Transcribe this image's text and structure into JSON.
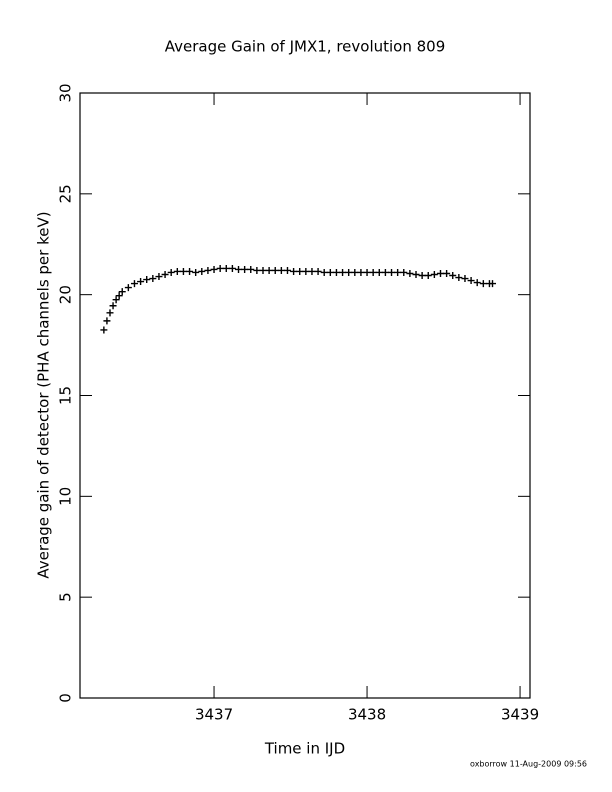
{
  "chart_data": {
    "type": "scatter",
    "title": "Average Gain of JMX1, revolution 809",
    "x_label": "Time in IJD",
    "y_label": "Average gain of detector (PHA channels per keV)",
    "footnote": "oxborrow 11-Aug-2009 09:56",
    "marker": "+",
    "color": "#000000",
    "x": [
      3436.28,
      3436.3,
      3436.32,
      3436.34,
      3436.36,
      3436.38,
      3436.4,
      3436.44,
      3436.48,
      3436.52,
      3436.56,
      3436.6,
      3436.64,
      3436.68,
      3436.72,
      3436.76,
      3436.8,
      3436.84,
      3436.88,
      3436.92,
      3436.96,
      3437.0,
      3437.04,
      3437.08,
      3437.12,
      3437.16,
      3437.2,
      3437.24,
      3437.28,
      3437.32,
      3437.36,
      3437.4,
      3437.44,
      3437.48,
      3437.52,
      3437.56,
      3437.6,
      3437.64,
      3437.68,
      3437.72,
      3437.76,
      3437.8,
      3437.84,
      3437.88,
      3437.92,
      3437.96,
      3438.0,
      3438.04,
      3438.08,
      3438.12,
      3438.16,
      3438.2,
      3438.24,
      3438.28,
      3438.32,
      3438.36,
      3438.4,
      3438.44,
      3438.48,
      3438.52,
      3438.56,
      3438.6,
      3438.64,
      3438.68,
      3438.72,
      3438.76,
      3438.8,
      3438.82
    ],
    "values": [
      18.25,
      18.7,
      19.1,
      19.45,
      19.75,
      19.95,
      20.15,
      20.35,
      20.55,
      20.65,
      20.75,
      20.8,
      20.9,
      21.0,
      21.1,
      21.15,
      21.15,
      21.15,
      21.1,
      21.15,
      21.2,
      21.25,
      21.3,
      21.3,
      21.3,
      21.25,
      21.25,
      21.25,
      21.2,
      21.2,
      21.2,
      21.2,
      21.2,
      21.2,
      21.15,
      21.15,
      21.15,
      21.15,
      21.15,
      21.1,
      21.1,
      21.1,
      21.1,
      21.1,
      21.1,
      21.1,
      21.1,
      21.1,
      21.1,
      21.1,
      21.1,
      21.1,
      21.1,
      21.05,
      21.0,
      20.95,
      20.95,
      21.0,
      21.05,
      21.05,
      20.95,
      20.85,
      20.8,
      20.7,
      20.6,
      20.55,
      20.55,
      20.55
    ],
    "xlim": [
      3436.124,
      3439.065
    ],
    "xticks": [
      3437,
      3438,
      3439
    ],
    "ylim": [
      0,
      30
    ],
    "yticks": [
      0,
      5,
      10,
      15,
      20,
      25,
      30
    ]
  }
}
